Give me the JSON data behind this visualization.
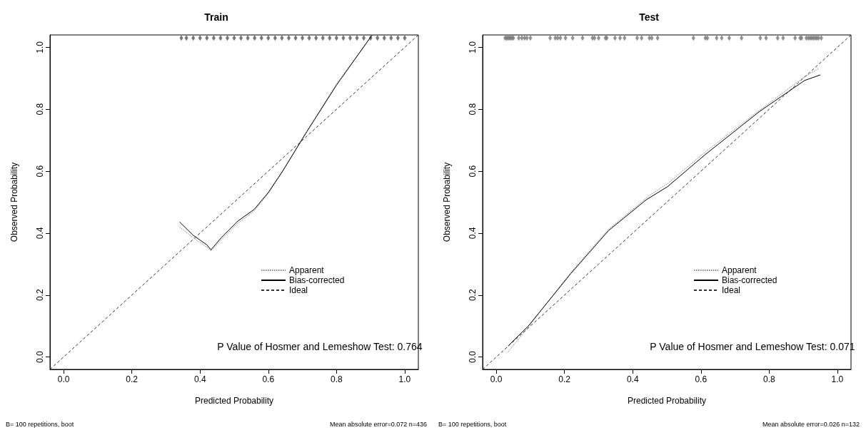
{
  "chart_data": [
    {
      "type": "line",
      "title": "Train",
      "xlabel": "Predicted Probability",
      "ylabel": "Observed Probability",
      "xlim": [
        -0.04,
        1.04
      ],
      "ylim": [
        -0.04,
        1.04
      ],
      "xticks": [
        {
          "value": 0,
          "label": "0.0"
        },
        {
          "value": 0.2,
          "label": "0.2"
        },
        {
          "value": 0.4,
          "label": "0.4"
        },
        {
          "value": 0.6,
          "label": "0.6"
        },
        {
          "value": 0.8,
          "label": "0.8"
        },
        {
          "value": 1,
          "label": "1.0"
        }
      ],
      "yticks": [
        {
          "value": 0,
          "label": "0.0"
        },
        {
          "value": 0.2,
          "label": "0.2"
        },
        {
          "value": 0.4,
          "label": "0.4"
        },
        {
          "value": 0.6,
          "label": "0.6"
        },
        {
          "value": 0.8,
          "label": "0.8"
        },
        {
          "value": 1,
          "label": "1.0"
        }
      ],
      "grid": false,
      "legend": "right",
      "annotations": [
        "P Value of Hosmer and Lemeshow Test: 0.764",
        "B= 100 repetitions, boot",
        "Mean absolute error=0.072 n=436"
      ],
      "series": [
        {
          "name": "Apparent",
          "color": "#808080",
          "line_style": "dotted",
          "x": [
            0.34,
            0.38,
            0.42,
            0.432,
            0.462,
            0.511,
            0.559,
            0.6,
            0.642,
            0.711,
            0.8,
            0.904
          ],
          "values": [
            0.42,
            0.385,
            0.355,
            0.342,
            0.378,
            0.432,
            0.472,
            0.528,
            0.6,
            0.726,
            0.882,
            1.039
          ]
        },
        {
          "name": "Bias-corrected",
          "color": "#000000",
          "line_style": "solid",
          "x": [
            0.34,
            0.38,
            0.42,
            0.432,
            0.462,
            0.511,
            0.559,
            0.6,
            0.642,
            0.711,
            0.8,
            0.904
          ],
          "values": [
            0.436,
            0.393,
            0.362,
            0.346,
            0.385,
            0.439,
            0.477,
            0.531,
            0.6,
            0.724,
            0.878,
            1.039
          ]
        },
        {
          "name": "Ideal",
          "color": "#333333",
          "line_style": "dashed",
          "x": [
            -0.04,
            1.04
          ],
          "values": [
            -0.04,
            1.04
          ]
        },
        {
          "type": "scatter",
          "marker": "diamond",
          "color": "#555555",
          "x": [
            0.345,
            0.36,
            0.38,
            0.4,
            0.42,
            0.44,
            0.46,
            0.48,
            0.5,
            0.52,
            0.54,
            0.56,
            0.58,
            0.6,
            0.62,
            0.64,
            0.66,
            0.68,
            0.7,
            0.72,
            0.74,
            0.76,
            0.78,
            0.8,
            0.82,
            0.84,
            0.86,
            0.88,
            0.9,
            0.92,
            0.94,
            0.96,
            0.98,
            1.0
          ],
          "values": [
            1.03,
            1.03,
            1.03,
            1.03,
            1.03,
            1.03,
            1.03,
            1.03,
            1.03,
            1.03,
            1.03,
            1.03,
            1.03,
            1.03,
            1.03,
            1.03,
            1.03,
            1.03,
            1.03,
            1.03,
            1.03,
            1.03,
            1.03,
            1.03,
            1.03,
            1.03,
            1.03,
            1.03,
            1.03,
            1.03,
            1.03,
            1.03,
            1.03,
            1.03
          ]
        }
      ]
    },
    {
      "type": "line",
      "title": "Test",
      "xlabel": "Predicted Probability",
      "ylabel": "Observed Probability",
      "xlim": [
        -0.04,
        1.04
      ],
      "ylim": [
        -0.04,
        1.04
      ],
      "xticks": [
        {
          "value": 0,
          "label": "0.0"
        },
        {
          "value": 0.2,
          "label": "0.2"
        },
        {
          "value": 0.4,
          "label": "0.4"
        },
        {
          "value": 0.6,
          "label": "0.6"
        },
        {
          "value": 0.8,
          "label": "0.8"
        },
        {
          "value": 1,
          "label": "1.0"
        }
      ],
      "yticks": [
        {
          "value": 0,
          "label": "0.0"
        },
        {
          "value": 0.2,
          "label": "0.2"
        },
        {
          "value": 0.4,
          "label": "0.4"
        },
        {
          "value": 0.6,
          "label": "0.6"
        },
        {
          "value": 0.8,
          "label": "0.8"
        },
        {
          "value": 1,
          "label": "1.0"
        }
      ],
      "grid": false,
      "legend": "right",
      "annotations": [
        "P Value of Hosmer and Lemeshow Test: 0.071",
        "B= 100 repetitions, boot",
        "Mean absolute error=0.026 n=132"
      ],
      "series": [
        {
          "name": "Apparent",
          "color": "#808080",
          "line_style": "dotted",
          "x": [
            0.035,
            0.094,
            0.219,
            0.329,
            0.447,
            0.502,
            0.613,
            0.772,
            0.904,
            0.947
          ],
          "values": [
            0.017,
            0.097,
            0.274,
            0.412,
            0.52,
            0.56,
            0.662,
            0.797,
            0.905,
            0.933
          ]
        },
        {
          "name": "Bias-corrected",
          "color": "#000000",
          "line_style": "solid",
          "x": [
            0.035,
            0.094,
            0.219,
            0.329,
            0.44,
            0.502,
            0.613,
            0.772,
            0.904,
            0.95
          ],
          "values": [
            0.036,
            0.1,
            0.27,
            0.408,
            0.508,
            0.55,
            0.654,
            0.793,
            0.893,
            0.911
          ]
        },
        {
          "name": "Ideal",
          "color": "#333333",
          "line_style": "dashed",
          "x": [
            -0.04,
            1.04
          ],
          "values": [
            -0.04,
            1.04
          ]
        },
        {
          "type": "scatter",
          "marker": "diamond",
          "color": "#777777",
          "x": [
            0.026,
            0.03,
            0.034,
            0.038,
            0.042,
            0.046,
            0.05,
            0.066,
            0.075,
            0.083,
            0.09,
            0.1,
            0.158,
            0.173,
            0.18,
            0.188,
            0.203,
            0.224,
            0.253,
            0.282,
            0.288,
            0.3,
            0.32,
            0.324,
            0.348,
            0.363,
            0.376,
            0.413,
            0.426,
            0.449,
            0.456,
            0.473,
            0.578,
            0.613,
            0.619,
            0.646,
            0.661,
            0.683,
            0.719,
            0.774,
            0.791,
            0.825,
            0.841,
            0.876,
            0.891,
            0.895,
            0.909,
            0.915,
            0.92,
            0.925,
            0.93,
            0.935,
            0.94,
            0.945,
            0.95,
            0.953
          ],
          "values": [
            1.03,
            1.03,
            1.03,
            1.03,
            1.03,
            1.03,
            1.03,
            1.03,
            1.03,
            1.03,
            1.03,
            1.03,
            1.03,
            1.03,
            1.03,
            1.03,
            1.03,
            1.03,
            1.03,
            1.03,
            1.03,
            1.03,
            1.03,
            1.03,
            1.03,
            1.03,
            1.03,
            1.03,
            1.03,
            1.03,
            1.03,
            1.03,
            1.03,
            1.03,
            1.03,
            1.03,
            1.03,
            1.03,
            1.03,
            1.03,
            1.03,
            1.03,
            1.03,
            1.03,
            1.03,
            1.03,
            1.03,
            1.03,
            1.03,
            1.03,
            1.03,
            1.03,
            1.03,
            1.03,
            null,
            1.03
          ]
        }
      ]
    }
  ]
}
